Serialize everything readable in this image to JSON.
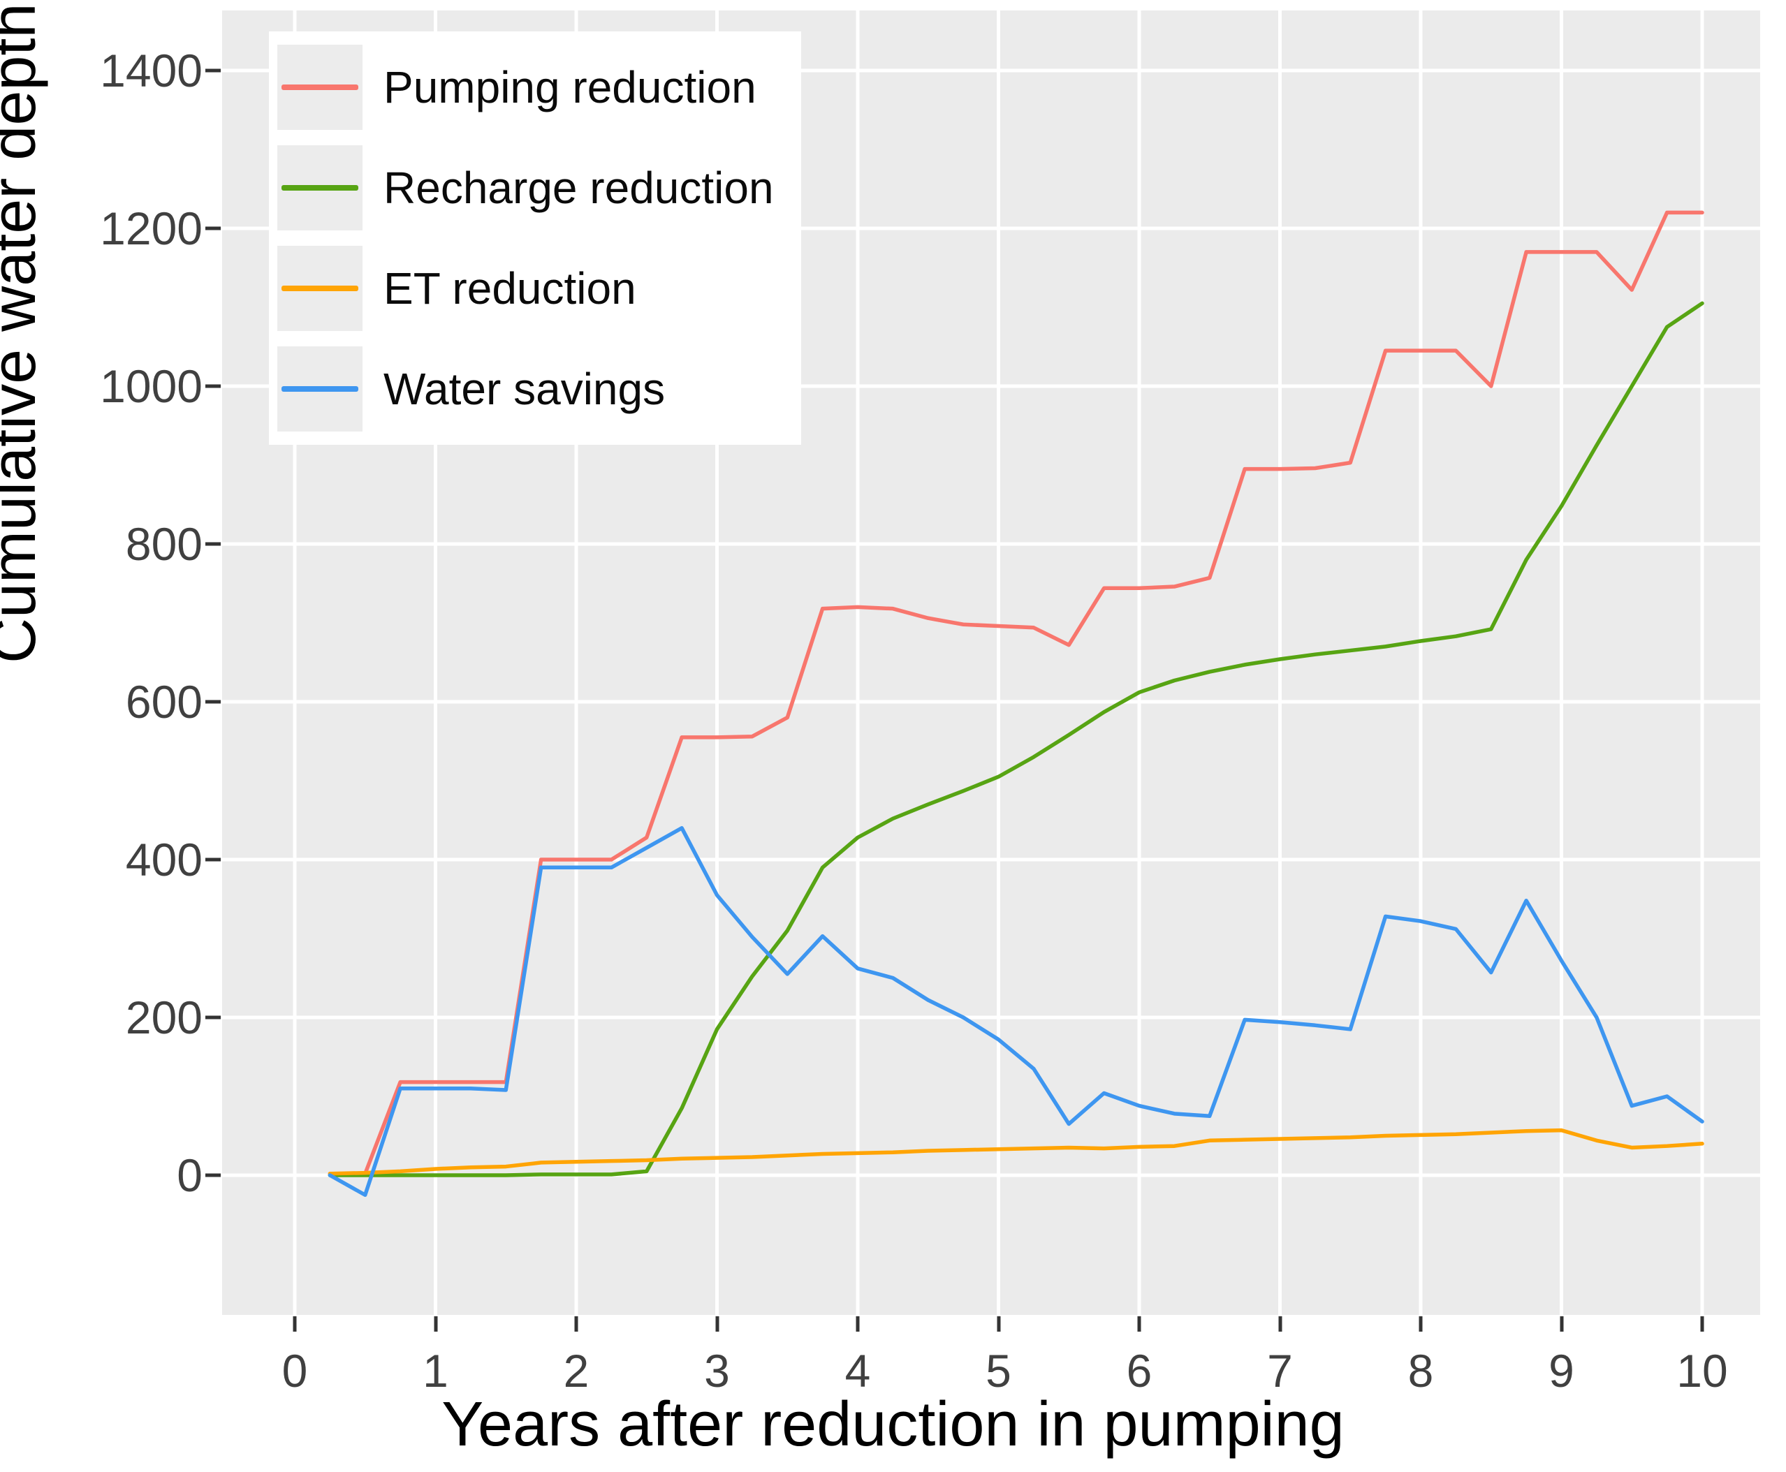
{
  "axes": {
    "x": {
      "label": "Years after reduction in pumping",
      "ticks": [
        0,
        1,
        2,
        3,
        4,
        5,
        6,
        7,
        8,
        9,
        10
      ]
    },
    "y": {
      "label": "Cumulative water depth (mm)",
      "ticks": [
        0,
        200,
        400,
        600,
        800,
        1000,
        1200,
        1400
      ]
    }
  },
  "legend": {
    "position": "top-left-inside",
    "entries": [
      {
        "label": "Pumping reduction",
        "color": "#F8766D"
      },
      {
        "label": "Recharge reduction",
        "color": "#57A413"
      },
      {
        "label": "ET reduction",
        "color": "#FFA405"
      },
      {
        "label": "Water savings",
        "color": "#3E96F0"
      }
    ]
  },
  "panel": {
    "background": "#EBEBEB",
    "gridline_color": "#FFFFFF"
  },
  "chart_data": {
    "type": "line",
    "title": "",
    "xlabel": "Years after reduction in pumping",
    "ylabel": "Cumulative water depth (mm)",
    "xlim": [
      -0.52,
      10.45
    ],
    "ylim": [
      -180,
      1465
    ],
    "grid": "major-white-on-grey",
    "legend_position": "top-left inside plot",
    "x": [
      0.25,
      0.5,
      0.75,
      1.0,
      1.25,
      1.5,
      1.75,
      2.0,
      2.25,
      2.5,
      2.75,
      3.0,
      3.25,
      3.5,
      3.75,
      4.0,
      4.25,
      4.5,
      4.75,
      5.0,
      5.25,
      5.5,
      5.75,
      6.0,
      6.25,
      6.5,
      6.75,
      7.0,
      7.25,
      7.5,
      7.75,
      8.0,
      8.25,
      8.5,
      8.75,
      9.0,
      9.25,
      9.5,
      9.75,
      10.0
    ],
    "series": [
      {
        "name": "Pumping reduction",
        "color": "#F8766D",
        "values": [
          2,
          2,
          118,
          118,
          118,
          118,
          400,
          400,
          400,
          428,
          555,
          555,
          556,
          580,
          718,
          720,
          718,
          706,
          698,
          696,
          694,
          672,
          744,
          744,
          746,
          757,
          895,
          895,
          896,
          903,
          1045,
          1045,
          1045,
          1000,
          1170,
          1170,
          1170,
          1122,
          1220,
          1220
        ]
      },
      {
        "name": "Recharge reduction",
        "color": "#57A413",
        "values": [
          0,
          0,
          0,
          0,
          0,
          0,
          1,
          1,
          1,
          5,
          85,
          185,
          252,
          310,
          390,
          428,
          452,
          470,
          487,
          505,
          530,
          558,
          587,
          612,
          627,
          638,
          647,
          654,
          660,
          665,
          670,
          677,
          683,
          692,
          780,
          848,
          925,
          1000,
          1075,
          1105
        ]
      },
      {
        "name": "ET reduction",
        "color": "#FFA405",
        "values": [
          2,
          3,
          5,
          8,
          10,
          11,
          16,
          17,
          18,
          19,
          21,
          22,
          23,
          25,
          27,
          28,
          29,
          31,
          32,
          33,
          34,
          35,
          34,
          36,
          37,
          44,
          45,
          46,
          47,
          48,
          50,
          51,
          52,
          54,
          56,
          57,
          44,
          35,
          37,
          40
        ]
      },
      {
        "name": "Water savings",
        "color": "#3E96F0",
        "values": [
          0,
          -25,
          110,
          110,
          110,
          108,
          390,
          390,
          390,
          415,
          440,
          355,
          302,
          255,
          303,
          262,
          250,
          222,
          200,
          172,
          135,
          65,
          104,
          88,
          78,
          75,
          197,
          194,
          190,
          185,
          328,
          322,
          312,
          257,
          348,
          272,
          200,
          88,
          100,
          68
        ]
      }
    ]
  }
}
